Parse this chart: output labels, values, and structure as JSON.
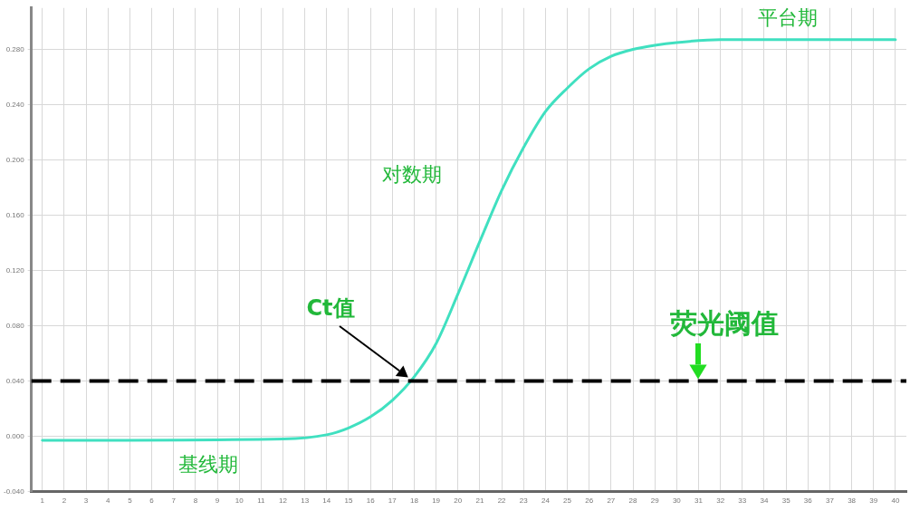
{
  "chart_data": {
    "type": "line",
    "x": [
      1,
      12,
      14,
      15,
      16,
      17,
      18,
      19,
      20,
      21,
      22,
      23,
      24,
      25,
      26,
      27,
      28,
      29,
      30,
      32,
      36,
      40
    ],
    "series": [
      {
        "color": "#40e0c0",
        "values": [
          -0.003,
          -0.002,
          0.001,
          0.006,
          0.014,
          0.026,
          0.043,
          0.067,
          0.103,
          0.141,
          0.178,
          0.209,
          0.235,
          0.252,
          0.266,
          0.275,
          0.28,
          0.283,
          0.285,
          0.287,
          0.287,
          0.287
        ]
      }
    ],
    "xlim": [
      0.5,
      40.5
    ],
    "xticks": [
      1,
      2,
      3,
      4,
      5,
      6,
      7,
      8,
      9,
      10,
      11,
      12,
      13,
      14,
      15,
      16,
      17,
      18,
      19,
      20,
      21,
      22,
      23,
      24,
      25,
      26,
      27,
      28,
      29,
      30,
      31,
      32,
      33,
      34,
      35,
      36,
      37,
      38,
      39,
      40
    ],
    "ylim": [
      -0.04,
      0.31
    ],
    "yticks": [
      {
        "value": -0.04,
        "label": "-0.040"
      },
      {
        "value": 0,
        "label": "0.000"
      },
      {
        "value": 0.04,
        "label": "0.040"
      },
      {
        "value": 0.08,
        "label": "0.080"
      },
      {
        "value": 0.12,
        "label": "0.120"
      },
      {
        "value": 0.16,
        "label": "0.160"
      },
      {
        "value": 0.2,
        "label": "0.200"
      },
      {
        "value": 0.24,
        "label": "0.240"
      },
      {
        "value": 0.28,
        "label": "0.280"
      }
    ],
    "grid": true,
    "marker": "none",
    "ref_lines": [
      {
        "axis": "y",
        "value": 0.04,
        "color": "#000000",
        "line_style": "dashed"
      }
    ],
    "annotations": [
      "平台期",
      "对数期",
      "基线期",
      "Ct值",
      {
        "text": "荧光阈值",
        "x": 31,
        "y": 0.04
      }
    ]
  }
}
